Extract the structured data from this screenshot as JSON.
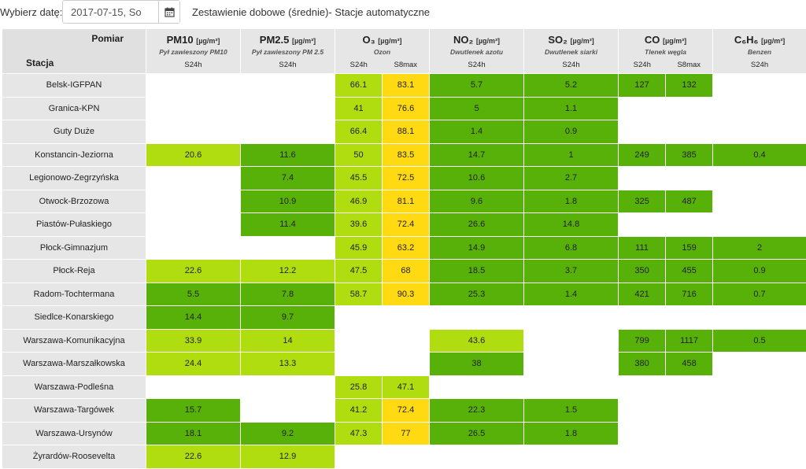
{
  "header": {
    "date_label": "Wybierz datę:",
    "date_value": "2017-07-15, So",
    "title": "Zestawienie dobowe (średnie)- Stacje automatyczne"
  },
  "table": {
    "corner_top": "Pomiar",
    "corner_bottom": "Stacja",
    "pollutants": [
      {
        "name": "PM10",
        "unit": "[µg/m³]",
        "desc": "Pył zawieszony PM10",
        "subs": [
          "S24h"
        ]
      },
      {
        "name": "PM2.5",
        "unit": "[µg/m³]",
        "desc": "Pył zawieszony PM 2.5",
        "subs": [
          "S24h"
        ]
      },
      {
        "name": "O₃",
        "unit": "[µg/m³]",
        "desc": "Ozon",
        "subs": [
          "S24h",
          "S8max"
        ]
      },
      {
        "name": "NO₂",
        "unit": "[µg/m³]",
        "desc": "Dwutlenek azotu",
        "subs": [
          "S24h"
        ]
      },
      {
        "name": "SO₂",
        "unit": "[µg/m³]",
        "desc": "Dwutlenek siarki",
        "subs": [
          "S24h"
        ]
      },
      {
        "name": "CO",
        "unit": "[µg/m³]",
        "desc": "Tlenek węgla",
        "subs": [
          "S24h",
          "S8max"
        ]
      },
      {
        "name": "C₆H₆",
        "unit": "[µg/m³]",
        "desc": "Benzen",
        "subs": [
          "S24h"
        ]
      }
    ],
    "legend_colors": {
      "0": "#ffffff",
      "1": "#57b108",
      "2": "#b0dd10",
      "3": "#ffd912"
    },
    "rows": [
      {
        "station": "Belsk-IGFPAN",
        "cells": [
          [
            "",
            0
          ],
          [
            "",
            0
          ],
          [
            "66.1",
            2
          ],
          [
            "83.1",
            3
          ],
          [
            "5.7",
            1
          ],
          [
            "5.2",
            1
          ],
          [
            "127",
            1
          ],
          [
            "132",
            1
          ],
          [
            "",
            0
          ]
        ]
      },
      {
        "station": "Granica-KPN",
        "cells": [
          [
            "",
            0
          ],
          [
            "",
            0
          ],
          [
            "41",
            2
          ],
          [
            "76.6",
            3
          ],
          [
            "5",
            1
          ],
          [
            "1.1",
            1
          ],
          [
            "",
            0
          ],
          [
            "",
            0
          ],
          [
            "",
            0
          ]
        ]
      },
      {
        "station": "Guty Duże",
        "cells": [
          [
            "",
            0
          ],
          [
            "",
            0
          ],
          [
            "66.4",
            2
          ],
          [
            "88.1",
            3
          ],
          [
            "1.4",
            1
          ],
          [
            "0.9",
            1
          ],
          [
            "",
            0
          ],
          [
            "",
            0
          ],
          [
            "",
            0
          ]
        ]
      },
      {
        "station": "Konstancin-Jeziorna",
        "cells": [
          [
            "20.6",
            2
          ],
          [
            "11.6",
            1
          ],
          [
            "50",
            2
          ],
          [
            "83.5",
            3
          ],
          [
            "14.7",
            1
          ],
          [
            "1",
            1
          ],
          [
            "249",
            1
          ],
          [
            "385",
            1
          ],
          [
            "0.4",
            1
          ]
        ]
      },
      {
        "station": "Legionowo-Zegrzyńska",
        "cells": [
          [
            "",
            0
          ],
          [
            "7.4",
            1
          ],
          [
            "45.5",
            2
          ],
          [
            "72.5",
            3
          ],
          [
            "10.6",
            1
          ],
          [
            "2.7",
            1
          ],
          [
            "",
            0
          ],
          [
            "",
            0
          ],
          [
            "",
            0
          ]
        ]
      },
      {
        "station": "Otwock-Brzozowa",
        "cells": [
          [
            "",
            0
          ],
          [
            "10.9",
            1
          ],
          [
            "46.9",
            2
          ],
          [
            "81.1",
            3
          ],
          [
            "9.6",
            1
          ],
          [
            "1.8",
            1
          ],
          [
            "325",
            1
          ],
          [
            "487",
            1
          ],
          [
            "",
            0
          ]
        ]
      },
      {
        "station": "Piastów-Pułaskiego",
        "cells": [
          [
            "",
            0
          ],
          [
            "11.4",
            1
          ],
          [
            "39.6",
            2
          ],
          [
            "72.4",
            3
          ],
          [
            "26.6",
            1
          ],
          [
            "14.8",
            1
          ],
          [
            "",
            0
          ],
          [
            "",
            0
          ],
          [
            "",
            0
          ]
        ]
      },
      {
        "station": "Płock-Gimnazjum",
        "cells": [
          [
            "",
            0
          ],
          [
            "",
            0
          ],
          [
            "45.9",
            2
          ],
          [
            "63.2",
            3
          ],
          [
            "14.9",
            1
          ],
          [
            "6.8",
            1
          ],
          [
            "111",
            1
          ],
          [
            "159",
            1
          ],
          [
            "2",
            1
          ]
        ]
      },
      {
        "station": "Płock-Reja",
        "cells": [
          [
            "22.6",
            2
          ],
          [
            "12.2",
            2
          ],
          [
            "47.5",
            2
          ],
          [
            "68",
            3
          ],
          [
            "18.5",
            1
          ],
          [
            "3.7",
            1
          ],
          [
            "350",
            1
          ],
          [
            "455",
            1
          ],
          [
            "0.9",
            1
          ]
        ]
      },
      {
        "station": "Radom-Tochtermana",
        "cells": [
          [
            "5.5",
            1
          ],
          [
            "7.8",
            1
          ],
          [
            "58.7",
            2
          ],
          [
            "90.3",
            3
          ],
          [
            "25.3",
            1
          ],
          [
            "1.4",
            1
          ],
          [
            "421",
            1
          ],
          [
            "716",
            1
          ],
          [
            "0.7",
            1
          ]
        ]
      },
      {
        "station": "Siedlce-Konarskiego",
        "cells": [
          [
            "14.4",
            1
          ],
          [
            "9.7",
            1
          ],
          [
            "",
            0
          ],
          [
            "",
            0
          ],
          [
            "",
            0
          ],
          [
            "",
            0
          ],
          [
            "",
            0
          ],
          [
            "",
            0
          ],
          [
            "",
            0
          ]
        ]
      },
      {
        "station": "Warszawa-Komunikacyjna",
        "cells": [
          [
            "33.9",
            2
          ],
          [
            "14",
            2
          ],
          [
            "",
            0
          ],
          [
            "",
            0
          ],
          [
            "43.6",
            2
          ],
          [
            "",
            0
          ],
          [
            "799",
            1
          ],
          [
            "1117",
            1
          ],
          [
            "0.5",
            1
          ]
        ]
      },
      {
        "station": "Warszawa-Marszałkowska",
        "cells": [
          [
            "24.4",
            2
          ],
          [
            "13.3",
            2
          ],
          [
            "",
            0
          ],
          [
            "",
            0
          ],
          [
            "38",
            1
          ],
          [
            "",
            0
          ],
          [
            "380",
            1
          ],
          [
            "458",
            1
          ],
          [
            "",
            0
          ]
        ]
      },
      {
        "station": "Warszawa-Podleśna",
        "cells": [
          [
            "",
            0
          ],
          [
            "",
            0
          ],
          [
            "25.8",
            2
          ],
          [
            "47.1",
            2
          ],
          [
            "",
            0
          ],
          [
            "",
            0
          ],
          [
            "",
            0
          ],
          [
            "",
            0
          ],
          [
            "",
            0
          ]
        ]
      },
      {
        "station": "Warszawa-Targówek",
        "cells": [
          [
            "15.7",
            1
          ],
          [
            "",
            0
          ],
          [
            "41.2",
            2
          ],
          [
            "72.4",
            3
          ],
          [
            "22.3",
            1
          ],
          [
            "1.5",
            1
          ],
          [
            "",
            0
          ],
          [
            "",
            0
          ],
          [
            "",
            0
          ]
        ]
      },
      {
        "station": "Warszawa-Ursynów",
        "cells": [
          [
            "18.1",
            1
          ],
          [
            "9.2",
            1
          ],
          [
            "47.3",
            2
          ],
          [
            "77",
            3
          ],
          [
            "26.5",
            1
          ],
          [
            "1.8",
            1
          ],
          [
            "",
            0
          ],
          [
            "",
            0
          ],
          [
            "",
            0
          ]
        ]
      },
      {
        "station": "Żyrardów-Roosevelta",
        "cells": [
          [
            "22.6",
            2
          ],
          [
            "12.9",
            2
          ],
          [
            "",
            0
          ],
          [
            "",
            0
          ],
          [
            "",
            0
          ],
          [
            "",
            0
          ],
          [
            "",
            0
          ],
          [
            "",
            0
          ],
          [
            "",
            0
          ]
        ]
      }
    ]
  }
}
